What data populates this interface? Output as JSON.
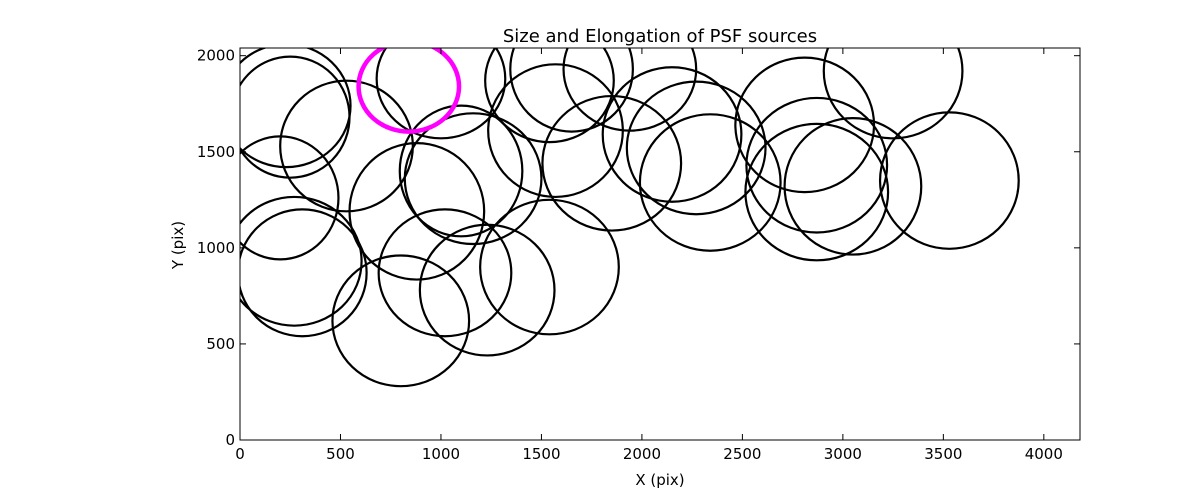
{
  "chart_data": {
    "type": "scatter",
    "marker": "ellipse",
    "title": "Size and Elongation of PSF sources",
    "xlabel": "X (pix)",
    "ylabel": "Y (pix)",
    "xlim": [
      0,
      4180
    ],
    "ylim": [
      0,
      2040
    ],
    "xticks": [
      0,
      500,
      1000,
      1500,
      2000,
      2500,
      3000,
      3500,
      4000
    ],
    "yticks": [
      0,
      500,
      1000,
      1500,
      2000
    ],
    "grid": false,
    "legend": "none",
    "colors": {
      "default": "#000000",
      "highlight": "#ff00ff"
    },
    "sources": [
      {
        "x": 230,
        "y": 1740,
        "w": 640,
        "h": 640,
        "highlight": false
      },
      {
        "x": 250,
        "y": 1680,
        "w": 590,
        "h": 630,
        "highlight": false
      },
      {
        "x": 200,
        "y": 1260,
        "w": 580,
        "h": 640,
        "highlight": false
      },
      {
        "x": 530,
        "y": 1530,
        "w": 660,
        "h": 680,
        "highlight": false
      },
      {
        "x": 1000,
        "y": 1880,
        "w": 640,
        "h": 620,
        "highlight": false
      },
      {
        "x": 840,
        "y": 1840,
        "w": 500,
        "h": 470,
        "highlight": true
      },
      {
        "x": 1540,
        "y": 1870,
        "w": 640,
        "h": 640,
        "highlight": false
      },
      {
        "x": 1650,
        "y": 1930,
        "w": 610,
        "h": 650,
        "highlight": false
      },
      {
        "x": 1940,
        "y": 1930,
        "w": 660,
        "h": 640,
        "highlight": false
      },
      {
        "x": 1100,
        "y": 1400,
        "w": 610,
        "h": 680,
        "highlight": false
      },
      {
        "x": 1160,
        "y": 1360,
        "w": 680,
        "h": 680,
        "highlight": false
      },
      {
        "x": 880,
        "y": 1190,
        "w": 670,
        "h": 710,
        "highlight": false
      },
      {
        "x": 1570,
        "y": 1610,
        "w": 670,
        "h": 690,
        "highlight": false
      },
      {
        "x": 1850,
        "y": 1440,
        "w": 690,
        "h": 700,
        "highlight": false
      },
      {
        "x": 2150,
        "y": 1590,
        "w": 690,
        "h": 700,
        "highlight": false
      },
      {
        "x": 2270,
        "y": 1520,
        "w": 690,
        "h": 690,
        "highlight": false
      },
      {
        "x": 2340,
        "y": 1340,
        "w": 700,
        "h": 710,
        "highlight": false
      },
      {
        "x": 2810,
        "y": 1640,
        "w": 690,
        "h": 700,
        "highlight": false
      },
      {
        "x": 2870,
        "y": 1430,
        "w": 700,
        "h": 700,
        "highlight": false
      },
      {
        "x": 2870,
        "y": 1290,
        "w": 710,
        "h": 710,
        "highlight": false
      },
      {
        "x": 3050,
        "y": 1320,
        "w": 680,
        "h": 710,
        "highlight": false
      },
      {
        "x": 3250,
        "y": 1920,
        "w": 690,
        "h": 700,
        "highlight": false
      },
      {
        "x": 3530,
        "y": 1350,
        "w": 690,
        "h": 710,
        "highlight": false
      },
      {
        "x": 270,
        "y": 930,
        "w": 670,
        "h": 670,
        "highlight": false
      },
      {
        "x": 310,
        "y": 870,
        "w": 640,
        "h": 660,
        "highlight": false
      },
      {
        "x": 800,
        "y": 620,
        "w": 680,
        "h": 680,
        "highlight": false
      },
      {
        "x": 1020,
        "y": 870,
        "w": 660,
        "h": 660,
        "highlight": false
      },
      {
        "x": 1230,
        "y": 780,
        "w": 670,
        "h": 680,
        "highlight": false
      },
      {
        "x": 1540,
        "y": 900,
        "w": 690,
        "h": 700,
        "highlight": false
      }
    ]
  }
}
